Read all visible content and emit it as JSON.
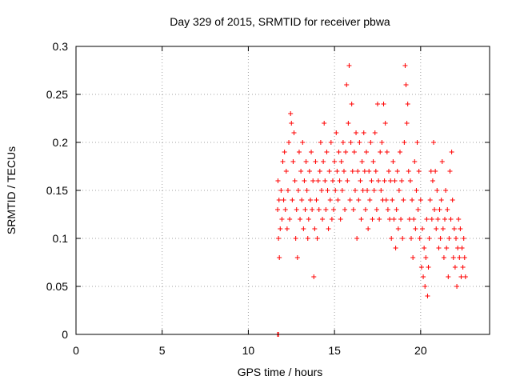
{
  "chart_data": {
    "type": "scatter",
    "title": "Day 329 of 2015, SRMTID for receiver pbwa",
    "xlabel": "GPS time / hours",
    "ylabel": "SRMTID / TECUs",
    "xlim": [
      0,
      24
    ],
    "ylim": [
      0,
      0.3
    ],
    "xticks": [
      0,
      5,
      10,
      15,
      20
    ],
    "xtick_labels": [
      "0",
      "5",
      "10",
      "15",
      "20"
    ],
    "yticks": [
      0,
      0.05,
      0.1,
      0.15,
      0.2,
      0.25,
      0.3
    ],
    "ytick_labels": [
      "0",
      "0.05",
      "0.1",
      "0.15",
      "0.2",
      "0.25",
      "0.3"
    ],
    "grid": true,
    "marker": "+",
    "color": "#ff0000",
    "series": [
      {
        "name": "SRMTID",
        "points": [
          [
            11.7,
            0.0
          ],
          [
            11.75,
            0.0
          ],
          [
            11.7,
            0.13
          ],
          [
            11.72,
            0.16
          ],
          [
            11.75,
            0.1
          ],
          [
            11.78,
            0.14
          ],
          [
            11.8,
            0.08
          ],
          [
            11.85,
            0.11
          ],
          [
            11.9,
            0.15
          ],
          [
            11.95,
            0.12
          ],
          [
            12.0,
            0.18
          ],
          [
            12.05,
            0.14
          ],
          [
            12.1,
            0.19
          ],
          [
            12.15,
            0.13
          ],
          [
            12.2,
            0.17
          ],
          [
            12.25,
            0.11
          ],
          [
            12.3,
            0.15
          ],
          [
            12.35,
            0.2
          ],
          [
            12.4,
            0.12
          ],
          [
            12.45,
            0.23
          ],
          [
            12.5,
            0.22
          ],
          [
            12.55,
            0.14
          ],
          [
            12.6,
            0.18
          ],
          [
            12.65,
            0.21
          ],
          [
            12.7,
            0.16
          ],
          [
            12.75,
            0.1
          ],
          [
            12.8,
            0.13
          ],
          [
            12.85,
            0.08
          ],
          [
            12.9,
            0.15
          ],
          [
            12.95,
            0.19
          ],
          [
            13.0,
            0.12
          ],
          [
            13.05,
            0.17
          ],
          [
            13.1,
            0.14
          ],
          [
            13.15,
            0.2
          ],
          [
            13.2,
            0.11
          ],
          [
            13.25,
            0.16
          ],
          [
            13.3,
            0.13
          ],
          [
            13.35,
            0.18
          ],
          [
            13.4,
            0.15
          ],
          [
            13.45,
            0.1
          ],
          [
            13.5,
            0.12
          ],
          [
            13.55,
            0.17
          ],
          [
            13.6,
            0.14
          ],
          [
            13.65,
            0.19
          ],
          [
            13.7,
            0.13
          ],
          [
            13.75,
            0.16
          ],
          [
            13.8,
            0.06
          ],
          [
            13.85,
            0.11
          ],
          [
            13.9,
            0.18
          ],
          [
            13.95,
            0.14
          ],
          [
            14.0,
            0.1
          ],
          [
            14.05,
            0.16
          ],
          [
            14.1,
            0.13
          ],
          [
            14.15,
            0.17
          ],
          [
            14.2,
            0.2
          ],
          [
            14.25,
            0.15
          ],
          [
            14.3,
            0.12
          ],
          [
            14.35,
            0.18
          ],
          [
            14.4,
            0.22
          ],
          [
            14.45,
            0.16
          ],
          [
            14.5,
            0.13
          ],
          [
            14.55,
            0.19
          ],
          [
            14.6,
            0.15
          ],
          [
            14.65,
            0.11
          ],
          [
            14.7,
            0.17
          ],
          [
            14.75,
            0.14
          ],
          [
            14.8,
            0.2
          ],
          [
            14.85,
            0.12
          ],
          [
            14.9,
            0.16
          ],
          [
            14.95,
            0.13
          ],
          [
            15.0,
            0.18
          ],
          [
            15.05,
            0.15
          ],
          [
            15.1,
            0.21
          ],
          [
            15.15,
            0.17
          ],
          [
            15.2,
            0.14
          ],
          [
            15.25,
            0.19
          ],
          [
            15.3,
            0.16
          ],
          [
            15.35,
            0.12
          ],
          [
            15.4,
            0.18
          ],
          [
            15.45,
            0.15
          ],
          [
            15.5,
            0.2
          ],
          [
            15.55,
            0.17
          ],
          [
            15.6,
            0.13
          ],
          [
            15.65,
            0.19
          ],
          [
            15.7,
            0.26
          ],
          [
            15.75,
            0.16
          ],
          [
            15.8,
            0.22
          ],
          [
            15.85,
            0.28
          ],
          [
            15.9,
            0.14
          ],
          [
            15.95,
            0.2
          ],
          [
            16.0,
            0.24
          ],
          [
            16.05,
            0.17
          ],
          [
            16.1,
            0.13
          ],
          [
            16.15,
            0.19
          ],
          [
            16.2,
            0.15
          ],
          [
            16.25,
            0.21
          ],
          [
            16.3,
            0.1
          ],
          [
            16.35,
            0.17
          ],
          [
            16.4,
            0.14
          ],
          [
            16.45,
            0.2
          ],
          [
            16.5,
            0.16
          ],
          [
            16.55,
            0.12
          ],
          [
            16.6,
            0.18
          ],
          [
            16.65,
            0.15
          ],
          [
            16.7,
            0.21
          ],
          [
            16.75,
            0.17
          ],
          [
            16.8,
            0.13
          ],
          [
            16.85,
            0.19
          ],
          [
            16.9,
            0.15
          ],
          [
            16.95,
            0.11
          ],
          [
            17.0,
            0.17
          ],
          [
            17.05,
            0.14
          ],
          [
            17.1,
            0.2
          ],
          [
            17.15,
            0.16
          ],
          [
            17.2,
            0.12
          ],
          [
            17.25,
            0.18
          ],
          [
            17.3,
            0.15
          ],
          [
            17.35,
            0.21
          ],
          [
            17.4,
            0.17
          ],
          [
            17.45,
            0.13
          ],
          [
            17.5,
            0.24
          ],
          [
            17.55,
            0.16
          ],
          [
            17.6,
            0.12
          ],
          [
            17.65,
            0.19
          ],
          [
            17.7,
            0.15
          ],
          [
            17.75,
            0.2
          ],
          [
            17.8,
            0.14
          ],
          [
            17.85,
            0.24
          ],
          [
            17.9,
            0.16
          ],
          [
            17.95,
            0.22
          ],
          [
            18.0,
            0.14
          ],
          [
            18.05,
            0.19
          ],
          [
            18.1,
            0.13
          ],
          [
            18.15,
            0.17
          ],
          [
            18.2,
            0.12
          ],
          [
            18.25,
            0.16
          ],
          [
            18.3,
            0.1
          ],
          [
            18.35,
            0.14
          ],
          [
            18.4,
            0.18
          ],
          [
            18.45,
            0.12
          ],
          [
            18.5,
            0.16
          ],
          [
            18.55,
            0.09
          ],
          [
            18.6,
            0.13
          ],
          [
            18.65,
            0.17
          ],
          [
            18.7,
            0.11
          ],
          [
            18.75,
            0.15
          ],
          [
            18.8,
            0.19
          ],
          [
            18.85,
            0.12
          ],
          [
            18.9,
            0.16
          ],
          [
            18.95,
            0.1
          ],
          [
            19.0,
            0.14
          ],
          [
            19.05,
            0.2
          ],
          [
            19.1,
            0.28
          ],
          [
            19.15,
            0.26
          ],
          [
            19.2,
            0.22
          ],
          [
            19.25,
            0.24
          ],
          [
            19.3,
            0.17
          ],
          [
            19.35,
            0.12
          ],
          [
            19.4,
            0.16
          ],
          [
            19.45,
            0.1
          ],
          [
            19.5,
            0.14
          ],
          [
            19.55,
            0.08
          ],
          [
            19.6,
            0.12
          ],
          [
            19.65,
            0.18
          ],
          [
            19.7,
            0.11
          ],
          [
            19.75,
            0.15
          ],
          [
            19.8,
            0.2
          ],
          [
            19.85,
            0.13
          ],
          [
            19.9,
            0.17
          ],
          [
            19.95,
            0.1
          ],
          [
            20.0,
            0.14
          ],
          [
            20.05,
            0.07
          ],
          [
            20.1,
            0.11
          ],
          [
            20.15,
            0.06
          ],
          [
            20.2,
            0.09
          ],
          [
            20.25,
            0.05
          ],
          [
            20.3,
            0.08
          ],
          [
            20.35,
            0.12
          ],
          [
            20.4,
            0.04
          ],
          [
            20.45,
            0.07
          ],
          [
            20.5,
            0.1
          ],
          [
            20.55,
            0.14
          ],
          [
            20.6,
            0.17
          ],
          [
            20.65,
            0.12
          ],
          [
            20.7,
            0.16
          ],
          [
            20.75,
            0.2
          ],
          [
            20.8,
            0.13
          ],
          [
            20.85,
            0.17
          ],
          [
            20.9,
            0.11
          ],
          [
            20.95,
            0.15
          ],
          [
            21.0,
            0.12
          ],
          [
            21.05,
            0.09
          ],
          [
            21.1,
            0.13
          ],
          [
            21.15,
            0.1
          ],
          [
            21.2,
            0.14
          ],
          [
            21.25,
            0.18
          ],
          [
            21.3,
            0.11
          ],
          [
            21.35,
            0.08
          ],
          [
            21.4,
            0.12
          ],
          [
            21.45,
            0.15
          ],
          [
            21.5,
            0.09
          ],
          [
            21.55,
            0.13
          ],
          [
            21.6,
            0.06
          ],
          [
            21.65,
            0.1
          ],
          [
            21.7,
            0.17
          ],
          [
            21.75,
            0.12
          ],
          [
            21.8,
            0.19
          ],
          [
            21.85,
            0.14
          ],
          [
            21.9,
            0.08
          ],
          [
            21.95,
            0.11
          ],
          [
            22.0,
            0.07
          ],
          [
            22.05,
            0.1
          ],
          [
            22.1,
            0.05
          ],
          [
            22.15,
            0.09
          ],
          [
            22.2,
            0.12
          ],
          [
            22.25,
            0.08
          ],
          [
            22.3,
            0.11
          ],
          [
            22.35,
            0.06
          ],
          [
            22.4,
            0.09
          ],
          [
            22.45,
            0.07
          ],
          [
            22.5,
            0.1
          ],
          [
            22.55,
            0.08
          ],
          [
            22.6,
            0.06
          ]
        ]
      }
    ]
  }
}
